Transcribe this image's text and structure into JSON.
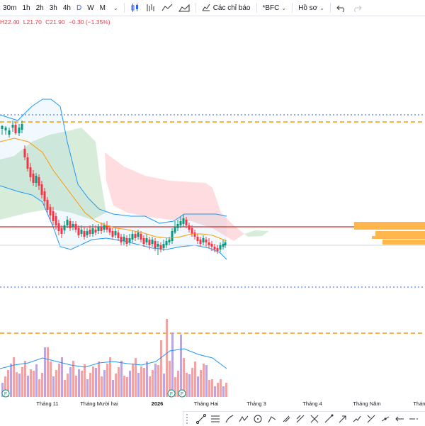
{
  "toolbar": {
    "intervals": [
      "30m",
      "1h",
      "2h",
      "3h",
      "4h",
      "D",
      "W",
      "M"
    ],
    "active_interval": "D",
    "indicators_label": "Các chỉ báo",
    "symbol_label": "*BFC",
    "profile_label": "Hồ sơ",
    "icons": [
      "candles-icon",
      "compare-icon",
      "line-chart-icon",
      "area-chart-icon",
      "indicators-icon",
      "undo-icon",
      "redo-icon"
    ]
  },
  "legend": {
    "high": "H22.40",
    "low": "L21.70",
    "close": "C21.90",
    "change": "−0.30 (−1.35%)"
  },
  "time_axis": {
    "labels": [
      "Tháng 11",
      "Tháng Mười hai",
      "2026",
      "Tháng Hai",
      "Tháng 3",
      "Tháng 4",
      "Tháng Năm",
      "Tháng"
    ]
  },
  "event_markers": [
    "F",
    "F",
    "F"
  ],
  "colors": {
    "up": "#089981",
    "down": "#f23645",
    "bollinger": "#2196f3",
    "ma": "#ff9800",
    "volume_up": "#b39ddb",
    "volume_down": "#ef9a9a",
    "horizontal_red": "#d32f2f",
    "dotted_blue": "#2962ff",
    "dashed_orange": "#ff9800",
    "volume_profile": "#ffb74d"
  },
  "drawing_tools": [
    "trend-line-icon",
    "fib-icon",
    "brush-icon",
    "text-icon",
    "pattern-icon",
    "prediction-icon",
    "circle-icon",
    "measure-icon",
    "zoom-icon",
    "ruler-icon",
    "arrow-icon",
    "magnet-icon",
    "lock-icon",
    "eye-icon",
    "trash-icon",
    "arrow-left-icon"
  ]
}
